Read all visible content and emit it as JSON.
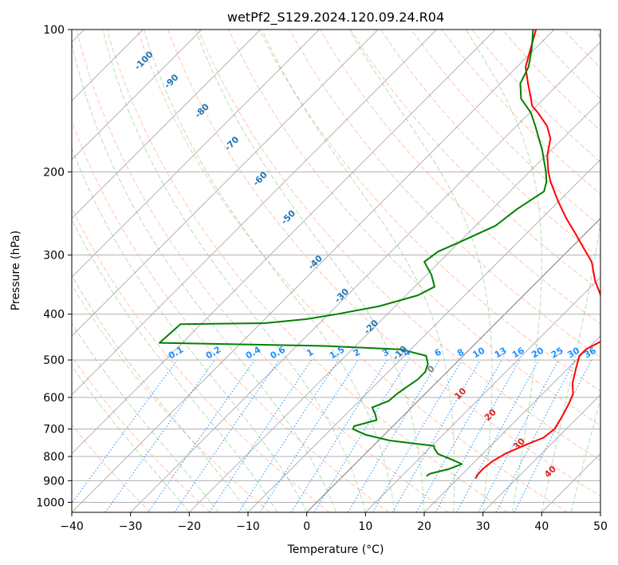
{
  "chart_data": {
    "type": "skew-t",
    "title": "wetPf2_S129.2024.120.09.24.R04",
    "xlabel": "Temperature (°C)",
    "ylabel": "Pressure (hPa)",
    "xlim": [
      -40,
      50
    ],
    "ylim": [
      1050,
      100
    ],
    "y_scale": "log",
    "grid": true,
    "x_ticks": [
      -40,
      -30,
      -20,
      -10,
      0,
      10,
      20,
      30,
      40,
      50
    ],
    "x_tick_labels": [
      "−40",
      "−30",
      "−20",
      "−10",
      "0",
      "10",
      "20",
      "30",
      "40",
      "50"
    ],
    "y_ticks": [
      100,
      200,
      300,
      400,
      500,
      600,
      700,
      800,
      900,
      1000
    ],
    "y_tick_labels": [
      "100",
      "200",
      "300",
      "400",
      "500",
      "600",
      "700",
      "800",
      "900",
      "1000"
    ],
    "colors": {
      "temperature": "#ff0000",
      "dewpoint": "#008000",
      "isotherm": "#808080",
      "dry_adiabat": "#ff7f50",
      "moist_adiabat": "#2ca02c",
      "mixing_ratio": "#1e90ff",
      "wetbulb": "#1f77b4",
      "isobar_grid": "#b0b0b0"
    },
    "series": [
      {
        "name": "Temperature",
        "points": [
          {
            "p": 890,
            "t": 23.0
          },
          {
            "p": 875,
            "t": 22.7
          },
          {
            "p": 850,
            "t": 22.6
          },
          {
            "p": 820,
            "t": 22.9
          },
          {
            "p": 790,
            "t": 23.8
          },
          {
            "p": 760,
            "t": 25.5
          },
          {
            "p": 730,
            "t": 27.6
          },
          {
            "p": 700,
            "t": 28.0
          },
          {
            "p": 660,
            "t": 27.2
          },
          {
            "p": 620,
            "t": 26.2
          },
          {
            "p": 590,
            "t": 25.2
          },
          {
            "p": 560,
            "t": 23.3
          },
          {
            "p": 520,
            "t": 21.3
          },
          {
            "p": 490,
            "t": 19.8
          },
          {
            "p": 475,
            "t": 19.8
          },
          {
            "p": 460,
            "t": 20.8
          },
          {
            "p": 448,
            "t": 22.0
          },
          {
            "p": 436,
            "t": 22.2
          },
          {
            "p": 420,
            "t": 20.9
          },
          {
            "p": 400,
            "t": 18.3
          },
          {
            "p": 370,
            "t": 13.8
          },
          {
            "p": 340,
            "t": 9.7
          },
          {
            "p": 310,
            "t": 5.9
          },
          {
            "p": 290,
            "t": 2.2
          },
          {
            "p": 270,
            "t": -1.7
          },
          {
            "p": 250,
            "t": -6.0
          },
          {
            "p": 230,
            "t": -10.3
          },
          {
            "p": 210,
            "t": -14.7
          },
          {
            "p": 200,
            "t": -16.8
          },
          {
            "p": 185,
            "t": -19.7
          },
          {
            "p": 170,
            "t": -22.1
          },
          {
            "p": 160,
            "t": -24.8
          },
          {
            "p": 150,
            "t": -28.6
          },
          {
            "p": 145,
            "t": -30.8
          },
          {
            "p": 140,
            "t": -32.2
          },
          {
            "p": 130,
            "t": -35.3
          },
          {
            "p": 120,
            "t": -38.5
          },
          {
            "p": 110,
            "t": -40.7
          },
          {
            "p": 100,
            "t": -43.1
          }
        ]
      },
      {
        "name": "Dewpoint",
        "points": [
          {
            "p": 880,
            "t": 14.2
          },
          {
            "p": 870,
            "t": 14.4
          },
          {
            "p": 850,
            "t": 16.9
          },
          {
            "p": 830,
            "t": 18.2
          },
          {
            "p": 810,
            "t": 15.4
          },
          {
            "p": 790,
            "t": 12.4
          },
          {
            "p": 770,
            "t": 10.9
          },
          {
            "p": 760,
            "t": 10.4
          },
          {
            "p": 740,
            "t": 1.9
          },
          {
            "p": 720,
            "t": -3.1
          },
          {
            "p": 700,
            "t": -6.3
          },
          {
            "p": 690,
            "t": -6.6
          },
          {
            "p": 670,
            "t": -3.8
          },
          {
            "p": 650,
            "t": -5.1
          },
          {
            "p": 630,
            "t": -6.7
          },
          {
            "p": 610,
            "t": -5.0
          },
          {
            "p": 590,
            "t": -4.8
          },
          {
            "p": 570,
            "t": -4.3
          },
          {
            "p": 550,
            "t": -3.7
          },
          {
            "p": 530,
            "t": -3.7
          },
          {
            "p": 510,
            "t": -4.6
          },
          {
            "p": 490,
            "t": -6.3
          },
          {
            "p": 475,
            "t": -11.6
          },
          {
            "p": 467,
            "t": -25.3
          },
          {
            "p": 460,
            "t": -53.9
          },
          {
            "p": 420,
            "t": -53.5
          },
          {
            "p": 418,
            "t": -39.4
          },
          {
            "p": 410,
            "t": -33.0
          },
          {
            "p": 400,
            "t": -28.6
          },
          {
            "p": 385,
            "t": -22.8
          },
          {
            "p": 365,
            "t": -18.0
          },
          {
            "p": 350,
            "t": -16.6
          },
          {
            "p": 330,
            "t": -19.2
          },
          {
            "p": 310,
            "t": -22.6
          },
          {
            "p": 295,
            "t": -22.0
          },
          {
            "p": 280,
            "t": -19.7
          },
          {
            "p": 260,
            "t": -16.6
          },
          {
            "p": 240,
            "t": -15.8
          },
          {
            "p": 220,
            "t": -14.2
          },
          {
            "p": 210,
            "t": -15.4
          },
          {
            "p": 200,
            "t": -17.2
          },
          {
            "p": 180,
            "t": -21.5
          },
          {
            "p": 160,
            "t": -26.8
          },
          {
            "p": 150,
            "t": -29.8
          },
          {
            "p": 140,
            "t": -33.9
          },
          {
            "p": 130,
            "t": -36.6
          },
          {
            "p": 120,
            "t": -38.0
          },
          {
            "p": 110,
            "t": -40.5
          },
          {
            "p": 100,
            "t": -43.6
          }
        ]
      }
    ],
    "wetbulb_labels": [
      "-100",
      "-90",
      "-80",
      "-70",
      "-60",
      "-50",
      "-40",
      "-30",
      "-20",
      "-10",
      "0",
      "10",
      "20",
      "30",
      "40"
    ],
    "mixing_ratio_labels": [
      "0.1",
      "0.2",
      "0.4",
      "0.6",
      "1",
      "1.5",
      "2",
      "3",
      "4",
      "6",
      "8",
      "10",
      "13",
      "16",
      "20",
      "25",
      "30",
      "36"
    ]
  }
}
